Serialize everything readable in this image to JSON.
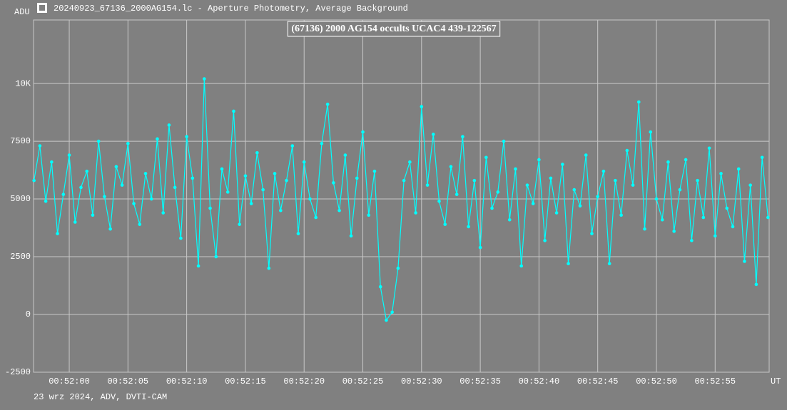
{
  "window_title": "20240923_67136_2000AG154.lc - Aperture Photometry, Average Background",
  "chart_data": {
    "type": "line",
    "title": "(67136) 2000 AG154 occults UCAC4 439-122567",
    "ylabel": "ADU",
    "xlabel": "UT",
    "footer": "23 wrz 2024, ADV, DVTI-CAM",
    "color": "#00ffff",
    "grid": true,
    "xlim": [
      3116.96,
      3179.6
    ],
    "ylim": [
      -2500,
      12750
    ],
    "xticks": [
      {
        "value": 3120,
        "label": "00:52:00"
      },
      {
        "value": 3125,
        "label": "00:52:05"
      },
      {
        "value": 3130,
        "label": "00:52:10"
      },
      {
        "value": 3135,
        "label": "00:52:15"
      },
      {
        "value": 3140,
        "label": "00:52:20"
      },
      {
        "value": 3145,
        "label": "00:52:25"
      },
      {
        "value": 3150,
        "label": "00:52:30"
      },
      {
        "value": 3155,
        "label": "00:52:35"
      },
      {
        "value": 3160,
        "label": "00:52:40"
      },
      {
        "value": 3165,
        "label": "00:52:45"
      },
      {
        "value": 3170,
        "label": "00:52:50"
      },
      {
        "value": 3175,
        "label": "00:52:55"
      }
    ],
    "yticks": [
      -2500,
      0,
      2500,
      5000,
      7500,
      {
        "value": 10000,
        "label": "10K"
      }
    ],
    "x": [
      3117,
      3117.5,
      3118,
      3118.5,
      3119,
      3119.5,
      3120,
      3120.5,
      3121,
      3121.5,
      3122,
      3122.5,
      3123,
      3123.5,
      3124,
      3124.5,
      3125,
      3125.5,
      3126,
      3126.5,
      3127,
      3127.5,
      3128,
      3128.5,
      3129,
      3129.5,
      3130,
      3130.5,
      3131,
      3131.5,
      3132,
      3132.5,
      3133,
      3133.5,
      3134,
      3134.5,
      3135,
      3135.5,
      3136,
      3136.5,
      3137,
      3137.5,
      3138,
      3138.5,
      3139,
      3139.5,
      3140,
      3140.5,
      3141,
      3141.5,
      3142,
      3142.5,
      3143,
      3143.5,
      3144,
      3144.5,
      3145,
      3145.5,
      3146,
      3146.5,
      3147,
      3147.5,
      3148,
      3148.5,
      3149,
      3149.5,
      3150,
      3150.5,
      3151,
      3151.5,
      3152,
      3152.5,
      3153,
      3153.5,
      3154,
      3154.5,
      3155,
      3155.5,
      3156,
      3156.5,
      3157,
      3157.5,
      3158,
      3158.5,
      3159,
      3159.5,
      3160,
      3160.5,
      3161,
      3161.5,
      3162,
      3162.5,
      3163,
      3163.5,
      3164,
      3164.5,
      3165,
      3165.5,
      3166,
      3166.5,
      3167,
      3167.5,
      3168,
      3168.5,
      3169,
      3169.5,
      3170,
      3170.5,
      3171,
      3171.5,
      3172,
      3172.5,
      3173,
      3173.5,
      3174,
      3174.5,
      3175,
      3175.5,
      3176,
      3176.5,
      3177,
      3177.5,
      3178,
      3178.5,
      3179,
      3179.5
    ],
    "values": [
      5800,
      7300,
      4900,
      6600,
      3500,
      5200,
      6900,
      4000,
      5500,
      6200,
      4300,
      7500,
      5100,
      3700,
      6400,
      5600,
      7400,
      4800,
      3900,
      6100,
      5000,
      7600,
      4400,
      8200,
      5500,
      3300,
      7700,
      5900,
      2100,
      10200,
      4600,
      2500,
      6300,
      5300,
      8800,
      3900,
      6000,
      4800,
      7000,
      5400,
      2000,
      6100,
      4500,
      5800,
      7300,
      3500,
      6600,
      5000,
      4200,
      7400,
      9100,
      5700,
      4500,
      6900,
      3400,
      5900,
      7900,
      4300,
      6200,
      1200,
      -250,
      100,
      2000,
      5800,
      6600,
      4400,
      9000,
      5600,
      7800,
      4900,
      3900,
      6400,
      5200,
      7700,
      3800,
      5800,
      2900,
      6800,
      4600,
      5300,
      7500,
      4100,
      6300,
      2100,
      5600,
      4800,
      6700,
      3200,
      5900,
      4400,
      6500,
      2200,
      5400,
      4700,
      6900,
      3500,
      5100,
      6200,
      2200,
      5800,
      4300,
      7100,
      5600,
      9200,
      3700,
      7900,
      5000,
      4100,
      6600,
      3600,
      5400,
      6700,
      3200,
      5800,
      4200,
      7200,
      3400,
      6100,
      4600,
      3800,
      6300,
      2300,
      5600,
      1300,
      6800,
      4200
    ]
  }
}
